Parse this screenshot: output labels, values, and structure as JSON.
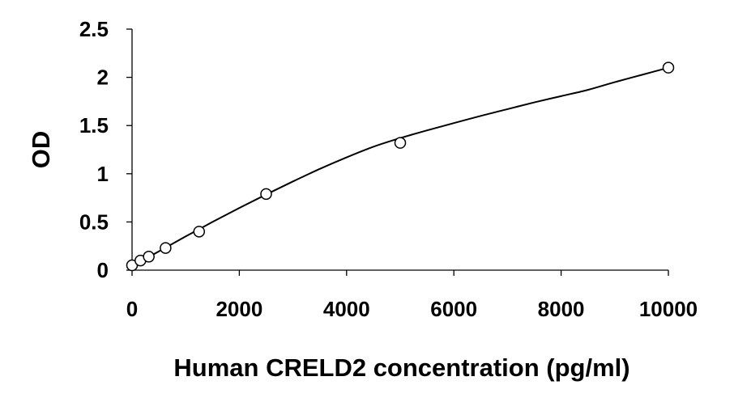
{
  "chart_data": {
    "type": "scatter",
    "title": "",
    "xlabel": "Human CRELD2 concentration (pg/ml)",
    "ylabel": "OD",
    "xlim": [
      0,
      10000
    ],
    "ylim": [
      0,
      2.5
    ],
    "xticks": [
      0,
      2000,
      4000,
      6000,
      8000,
      10000
    ],
    "yticks": [
      0,
      0.5,
      1,
      1.5,
      2,
      2.5
    ],
    "xtick_labels": [
      "0",
      "2000",
      "4000",
      "6000",
      "8000",
      "10000"
    ],
    "ytick_labels": [
      "0",
      "0.5",
      "1",
      "1.5",
      "2",
      "2.5"
    ],
    "grid": false,
    "legend": "none",
    "series": [
      {
        "marker": "open-circle",
        "x": [
          0,
          156,
          312,
          625,
          1250,
          2500,
          5000,
          10000
        ],
        "y": [
          0.05,
          0.1,
          0.14,
          0.23,
          0.4,
          0.79,
          1.32,
          2.1
        ]
      }
    ],
    "trendline": {
      "type": "polynomial-fit",
      "x": [
        0,
        500,
        1000,
        1500,
        2000,
        2500,
        3000,
        3500,
        4000,
        4500,
        5000,
        5500,
        6000,
        6500,
        7000,
        7500,
        8000,
        8500,
        9000,
        9500,
        10000
      ],
      "y": [
        0.04,
        0.195,
        0.35,
        0.5,
        0.645,
        0.785,
        0.92,
        1.05,
        1.17,
        1.28,
        1.37,
        1.45,
        1.525,
        1.6,
        1.67,
        1.74,
        1.805,
        1.87,
        1.95,
        2.025,
        2.1
      ]
    },
    "colors": {
      "line": "#000000",
      "marker_edge": "#000000",
      "marker_fill": "#ffffff",
      "axis": "#000000"
    }
  }
}
